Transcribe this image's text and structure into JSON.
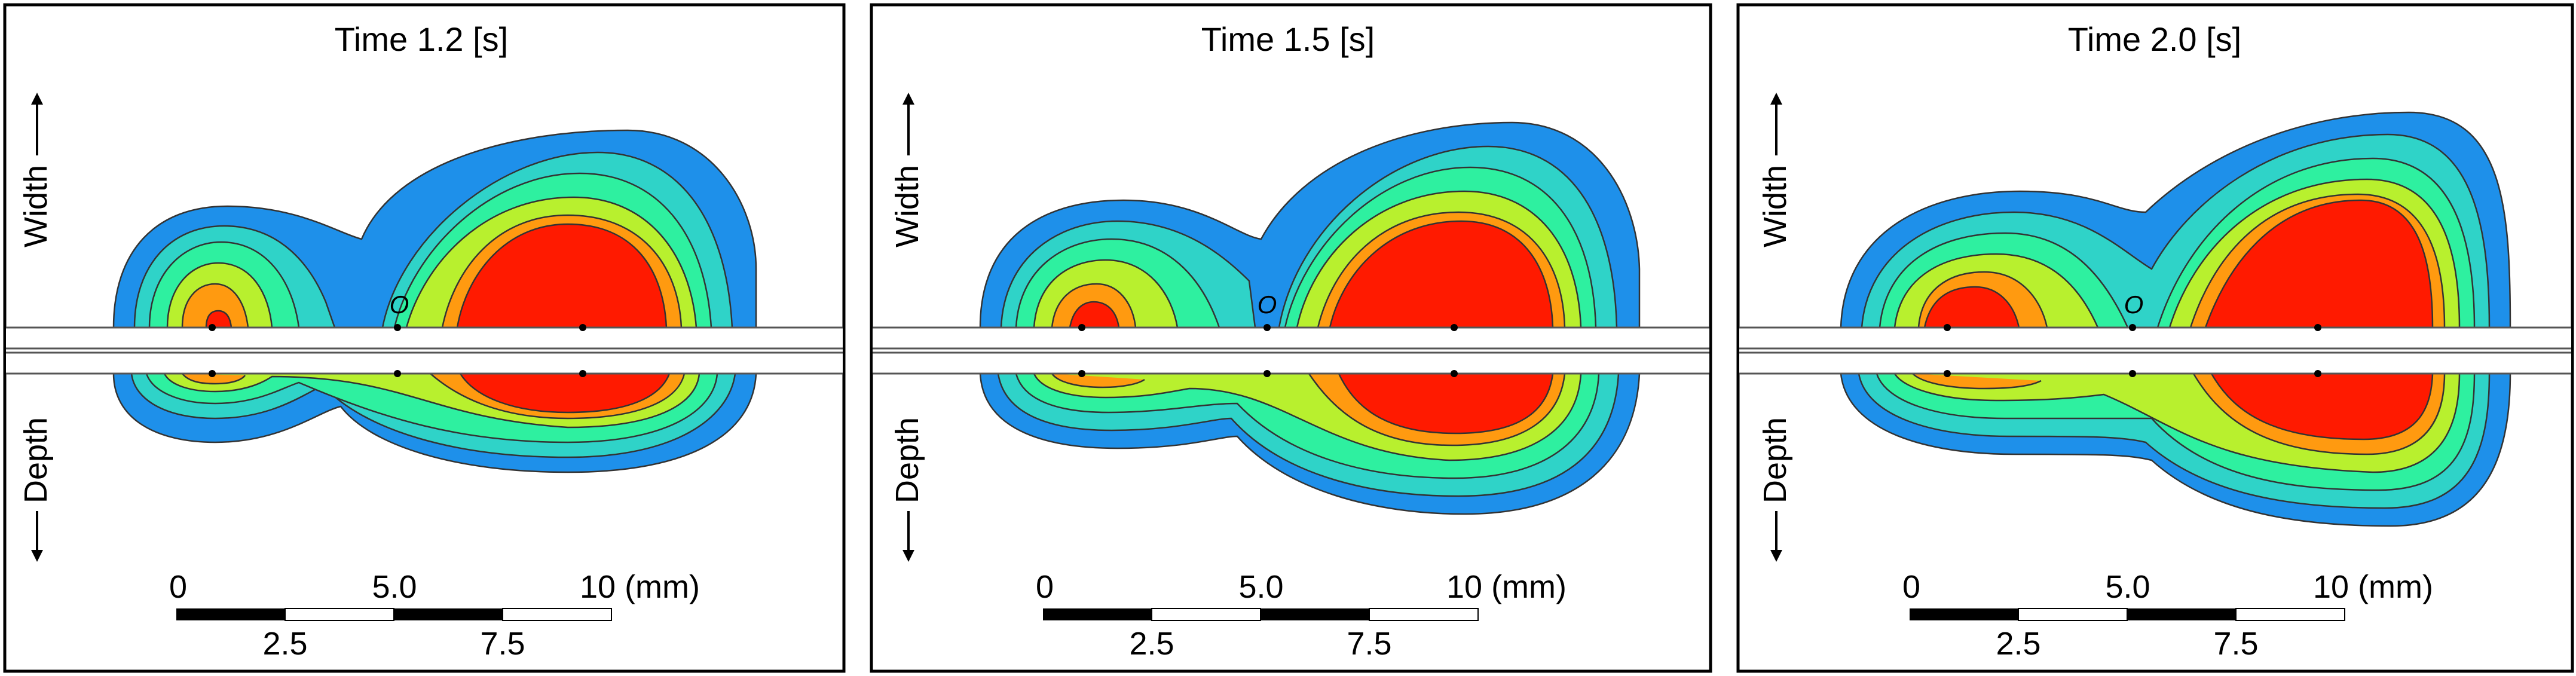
{
  "figure": {
    "width_label": "Width",
    "depth_label": "Depth",
    "origin_label": "O",
    "scale": {
      "top_labels": [
        "0",
        "5.0",
        "10 (mm)"
      ],
      "bottom_labels": [
        "2.5",
        "7.5"
      ]
    },
    "colors": {
      "level1": "#1e90ea",
      "level2": "#2fd3c8",
      "level3": "#2ef0a0",
      "level4": "#b8f02e",
      "level5": "#ff9a10",
      "level6": "#ff1a00"
    },
    "panels": [
      {
        "title": "Time 1.2 [s]",
        "time_s": 1.2
      },
      {
        "title": "Time 1.5 [s]",
        "time_s": 1.5
      },
      {
        "title": "Time 2.0 [s]",
        "time_s": 2.0
      }
    ]
  }
}
